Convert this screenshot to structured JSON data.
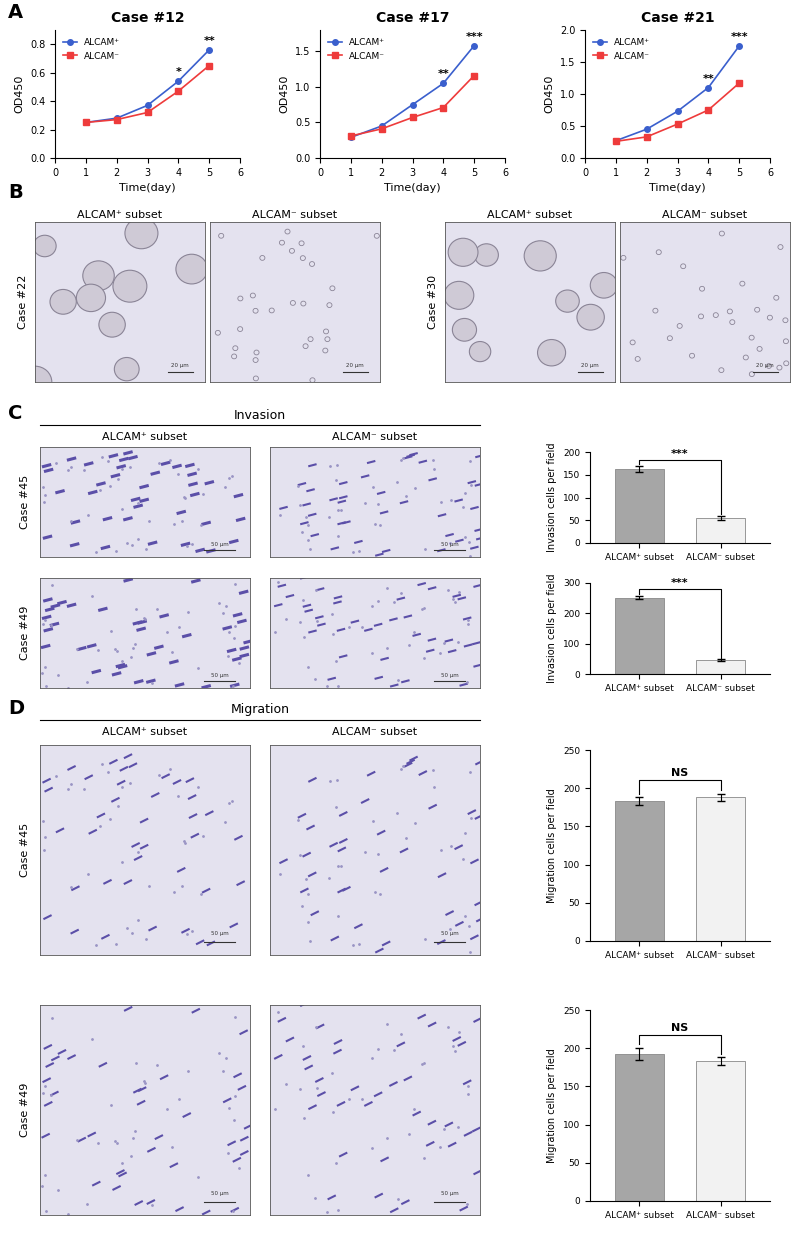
{
  "panel_labels": [
    "A",
    "B",
    "C",
    "D"
  ],
  "chart_data": [
    {
      "type": "line",
      "title": "Case #12",
      "xlabel": "Time(day)",
      "ylabel": "OD450",
      "x": [
        1,
        2,
        3,
        4,
        5
      ],
      "series": [
        {
          "name": "ALCAM⁺",
          "color": "#3a5fcd",
          "marker": "circle",
          "values": [
            0.25,
            0.28,
            0.37,
            0.54,
            0.76
          ]
        },
        {
          "name": "ALCAM⁻",
          "color": "#ee3b3b",
          "marker": "square",
          "values": [
            0.25,
            0.27,
            0.32,
            0.47,
            0.65
          ]
        }
      ],
      "xlim": [
        0,
        6
      ],
      "xticks": [
        0,
        1,
        2,
        3,
        4,
        5,
        6
      ],
      "ylim": [
        0,
        0.9
      ],
      "yticks": [
        {
          "value": 0,
          "label": "0.0"
        },
        {
          "value": 0.2,
          "label": "0.2"
        },
        {
          "value": 0.4,
          "label": "0.4"
        },
        {
          "value": 0.6,
          "label": "0.6"
        },
        {
          "value": 0.8,
          "label": "0.8"
        }
      ],
      "legend": "upper left",
      "annotations": [
        {
          "x": 4,
          "text": "*"
        },
        {
          "x": 5,
          "text": "**"
        }
      ]
    },
    {
      "type": "line",
      "title": "Case #17",
      "xlabel": "Time(day)",
      "ylabel": "OD450",
      "x": [
        1,
        2,
        3,
        4,
        5
      ],
      "series": [
        {
          "name": "ALCAM⁺",
          "color": "#3a5fcd",
          "marker": "circle",
          "values": [
            0.29,
            0.45,
            0.75,
            1.05,
            1.58
          ]
        },
        {
          "name": "ALCAM⁻",
          "color": "#ee3b3b",
          "marker": "square",
          "values": [
            0.31,
            0.41,
            0.57,
            0.71,
            1.16
          ]
        }
      ],
      "xlim": [
        0,
        6
      ],
      "xticks": [
        0,
        1,
        2,
        3,
        4,
        5,
        6
      ],
      "ylim": [
        0,
        1.8
      ],
      "yticks": [
        {
          "value": 0,
          "label": "0.0"
        },
        {
          "value": 0.5,
          "label": "0.5"
        },
        {
          "value": 1.0,
          "label": "1.0"
        },
        {
          "value": 1.5,
          "label": "1.5"
        }
      ],
      "legend": "upper left",
      "annotations": [
        {
          "x": 4,
          "text": "**"
        },
        {
          "x": 5,
          "text": "***"
        }
      ]
    },
    {
      "type": "line",
      "title": "Case #21",
      "xlabel": "Time(day)",
      "ylabel": "OD450",
      "x": [
        1,
        2,
        3,
        4,
        5
      ],
      "series": [
        {
          "name": "ALCAM⁺",
          "color": "#3a5fcd",
          "marker": "circle",
          "values": [
            0.27,
            0.45,
            0.73,
            1.1,
            1.75
          ]
        },
        {
          "name": "ALCAM⁻",
          "color": "#ee3b3b",
          "marker": "square",
          "values": [
            0.26,
            0.33,
            0.53,
            0.75,
            1.17
          ]
        }
      ],
      "xlim": [
        0,
        6
      ],
      "xticks": [
        0,
        1,
        2,
        3,
        4,
        5,
        6
      ],
      "ylim": [
        0,
        2.0
      ],
      "yticks": [
        {
          "value": 0,
          "label": "0.0"
        },
        {
          "value": 0.5,
          "label": "0.5"
        },
        {
          "value": 1.0,
          "label": "1.0"
        },
        {
          "value": 1.5,
          "label": "1.5"
        },
        {
          "value": 2.0,
          "label": "2.0"
        }
      ],
      "legend": "upper left",
      "annotations": [
        {
          "x": 4,
          "text": "**"
        },
        {
          "x": 5,
          "text": "***"
        }
      ]
    },
    {
      "type": "bar",
      "ylabel": "Invasion cells per field",
      "categories": [
        "ALCAM⁺ subset",
        "ALCAM⁻ subset"
      ],
      "values": [
        163,
        55
      ],
      "errors": [
        6,
        5
      ],
      "colors": [
        "#a6a6a6",
        "#f2f2f2"
      ],
      "ylim": [
        0,
        200
      ],
      "yticks": [
        0,
        50,
        100,
        150,
        200
      ],
      "significance": "***"
    },
    {
      "type": "bar",
      "ylabel": "Invasion cells per field",
      "categories": [
        "ALCAM⁺ subset",
        "ALCAM⁻ subset"
      ],
      "values": [
        252,
        45
      ],
      "errors": [
        6,
        3
      ],
      "colors": [
        "#a6a6a6",
        "#f2f2f2"
      ],
      "ylim": [
        0,
        300
      ],
      "yticks": [
        0,
        100,
        200,
        300
      ],
      "significance": "***"
    },
    {
      "type": "bar",
      "ylabel": "Migration cells per field",
      "categories": [
        "ALCAM⁺ subset",
        "ALCAM⁻ subset"
      ],
      "values": [
        183,
        188
      ],
      "errors": [
        5,
        5
      ],
      "colors": [
        "#a6a6a6",
        "#f2f2f2"
      ],
      "ylim": [
        0,
        250
      ],
      "yticks": [
        0,
        50,
        100,
        150,
        200,
        250
      ],
      "significance": "NS"
    },
    {
      "type": "bar",
      "ylabel": "Migration cells per field",
      "categories": [
        "ALCAM⁺ subset",
        "ALCAM⁻ subset"
      ],
      "values": [
        192,
        183
      ],
      "errors": [
        8,
        5
      ],
      "colors": [
        "#a6a6a6",
        "#f2f2f2"
      ],
      "ylim": [
        0,
        250
      ],
      "yticks": [
        0,
        50,
        100,
        150,
        200,
        250
      ],
      "significance": "NS"
    }
  ],
  "image_panels": {
    "B": {
      "groups": [
        {
          "case": "Case #22",
          "titles": [
            "ALCAM⁺ subset",
            "ALCAM⁻ subset"
          ]
        },
        {
          "case": "Case #30",
          "titles": [
            "ALCAM⁺ subset",
            "ALCAM⁻ subset"
          ]
        }
      ],
      "scale_label": "20 µm"
    },
    "C": {
      "header": "Invasion",
      "titles": [
        "ALCAM⁺ subset",
        "ALCAM⁻ subset"
      ],
      "cases": [
        "Case #45",
        "Case #49"
      ],
      "scale_label": "50 µm"
    },
    "D": {
      "header": "Migration",
      "titles": [
        "ALCAM⁺ subset",
        "ALCAM⁻ subset"
      ],
      "cases": [
        "Case #45",
        "Case #49"
      ],
      "scale_label": "50 µm"
    }
  }
}
